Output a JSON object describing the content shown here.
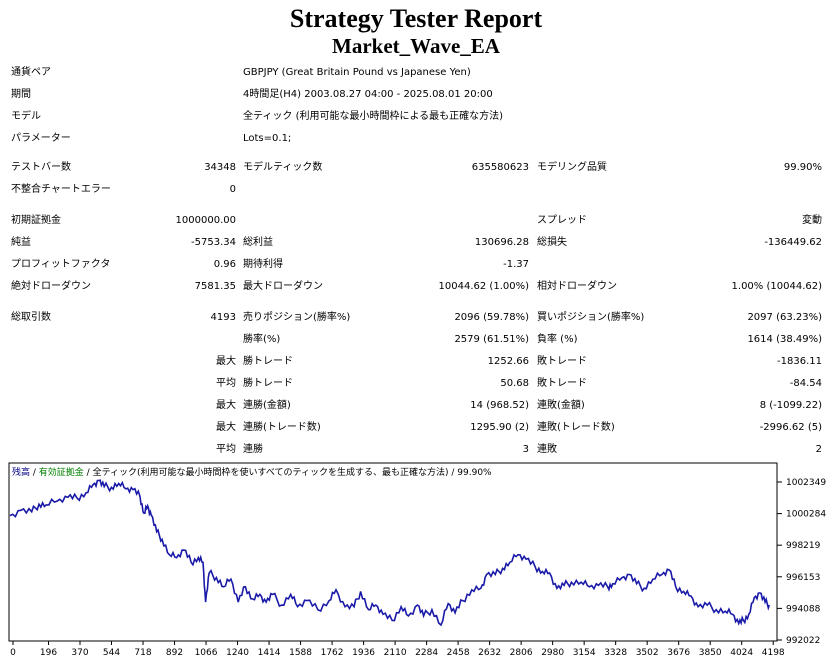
{
  "title": "Strategy Tester Report",
  "ea_name": "Market_Wave_EA",
  "info": {
    "symbol_label": "通貨ペア",
    "symbol_value": "GBPJPY (Great Britain Pound vs Japanese Yen)",
    "period_label": "期間",
    "period_value": "4時間足(H4) 2003.08.27 04:00 - 2025.08.01 20:00",
    "model_label": "モデル",
    "model_value": "全ティック (利用可能な最小時間枠による最も正確な方法)",
    "params_label": "パラメーター",
    "params_value": "Lots=0.1;"
  },
  "stats": {
    "bars_label": "テストバー数",
    "bars_value": "34348",
    "ticks_label": "モデルティック数",
    "ticks_value": "635580623",
    "quality_label": "モデリング品質",
    "quality_value": "99.90%",
    "mismatch_label": "不整合チャートエラー",
    "mismatch_value": "0",
    "deposit_label": "初期証拠金",
    "deposit_value": "1000000.00",
    "spread_label": "スプレッド",
    "spread_value": "変動",
    "netprofit_label": "純益",
    "netprofit_value": "-5753.34",
    "grossprofit_label": "総利益",
    "grossprofit_value": "130696.28",
    "grossloss_label": "総損失",
    "grossloss_value": "-136449.62",
    "pf_label": "プロフィットファクタ",
    "pf_value": "0.96",
    "expected_label": "期待利得",
    "expected_value": "-1.37",
    "absdd_label": "絶対ドローダウン",
    "absdd_value": "7581.35",
    "maxdd_label": "最大ドローダウン",
    "maxdd_value": "10044.62 (1.00%)",
    "reldd_label": "相対ドローダウン",
    "reldd_value": "1.00% (10044.62)",
    "trades_label": "総取引数",
    "trades_value": "4193",
    "short_label": "売りポジション(勝率%)",
    "short_value": "2096 (59.78%)",
    "long_label": "買いポジション(勝率%)",
    "long_value": "2097 (63.23%)",
    "win_label": "勝率(%)",
    "win_value": "2579 (61.51%)",
    "loss_label": "負率 (%)",
    "loss_value": "1614 (38.49%)",
    "max1_label": "最大",
    "largest_win_label": "勝トレード",
    "largest_win_value": "1252.66",
    "largest_loss_label": "敗トレード",
    "largest_loss_value": "-1836.11",
    "avg1_label": "平均",
    "avg_win_label": "勝トレード",
    "avg_win_value": "50.68",
    "avg_loss_label": "敗トレード",
    "avg_loss_value": "-84.54",
    "max2_label": "最大",
    "cons_wins_money_label": "連勝(金額)",
    "cons_wins_money_value": "14 (968.52)",
    "cons_loss_money_label": "連敗(金額)",
    "cons_loss_money_value": "8 (-1099.22)",
    "max3_label": "最大",
    "cons_profit_label": "連勝(トレード数)",
    "cons_profit_value": "1295.90 (2)",
    "cons_lossn_label": "連敗(トレード数)",
    "cons_lossn_value": "-2996.62 (5)",
    "avg2_label": "平均",
    "avg_cons_win_label": "連勝",
    "avg_cons_win_value": "3",
    "avg_cons_loss_label": "連敗",
    "avg_cons_loss_value": "2"
  },
  "chart_data": {
    "type": "line",
    "legend": {
      "balance": "残高",
      "sep1": " / ",
      "equity": "有効証拠金",
      "sep2": " / ",
      "model": "全ティック(利用可能な最小時間枠を使いすべてのティックを生成する、最も正確な方法)",
      "sep3": " / ",
      "quality": "99.90%"
    },
    "x_ticks": [
      "0",
      "196",
      "370",
      "544",
      "718",
      "892",
      "1066",
      "1240",
      "1414",
      "1588",
      "1762",
      "1936",
      "2110",
      "2284",
      "2458",
      "2632",
      "2806",
      "2980",
      "3154",
      "3328",
      "3502",
      "3676",
      "3850",
      "4024",
      "4198"
    ],
    "y_ticks": [
      "1002349",
      "1000284",
      "998219",
      "996153",
      "994088",
      "992022"
    ],
    "ylim": [
      992022,
      1003000
    ],
    "xlim": [
      0,
      4193
    ],
    "series": [
      {
        "x": [
          0,
          60,
          120,
          160,
          200,
          260,
          320,
          370,
          420,
          460,
          490,
          520,
          560,
          600,
          640,
          680,
          718,
          740,
          760,
          780,
          810,
          840,
          880,
          920,
          960,
          1000,
          1040,
          1066,
          1080,
          1100,
          1140,
          1180,
          1220,
          1260,
          1300,
          1340,
          1380,
          1414,
          1450,
          1500,
          1550,
          1588,
          1640,
          1700,
          1762,
          1800,
          1850,
          1900,
          1936,
          1980,
          2020,
          2060,
          2110,
          2160,
          2200,
          2250,
          2284,
          2330,
          2380,
          2420,
          2458,
          2500,
          2550,
          2600,
          2632,
          2680,
          2720,
          2760,
          2806,
          2850,
          2900,
          2940,
          2980,
          3020,
          3060,
          3100,
          3154,
          3200,
          3250,
          3300,
          3328,
          3380,
          3420,
          3460,
          3502,
          3550,
          3600,
          3640,
          3676,
          3720,
          3760,
          3800,
          3850,
          3900,
          3950,
          3990,
          4024,
          4050,
          4080,
          4110,
          4140,
          4170,
          4193
        ],
        "y": [
          1000150,
          1000500,
          1000400,
          1000900,
          1000850,
          1001100,
          1001350,
          1001300,
          1001650,
          1002200,
          1002450,
          1002050,
          1002000,
          1002250,
          1001900,
          1001850,
          1001400,
          1000300,
          1000800,
          1000200,
          999100,
          998600,
          997600,
          997400,
          997900,
          997100,
          997400,
          997100,
          994500,
          996400,
          996100,
          995500,
          996000,
          994500,
          995500,
          994700,
          995000,
          994500,
          995000,
          994300,
          995000,
          994200,
          994600,
          994000,
          994600,
          995300,
          994200,
          994200,
          995200,
          994000,
          994300,
          993700,
          993300,
          994200,
          993600,
          994300,
          993600,
          994000,
          993000,
          994400,
          993800,
          994600,
          995300,
          995400,
          996300,
          996300,
          996700,
          997100,
          997600,
          997300,
          996800,
          996500,
          996400,
          995400,
          995600,
          995800,
          995800,
          995500,
          995600,
          995500,
          995700,
          996100,
          996300,
          995700,
          995400,
          996000,
          996300,
          996600,
          995500,
          995200,
          994900,
          994200,
          994300,
          994000,
          993900,
          993700,
          993100,
          993300,
          993700,
          994800,
          995100,
          994500,
          994300
        ]
      }
    ]
  }
}
